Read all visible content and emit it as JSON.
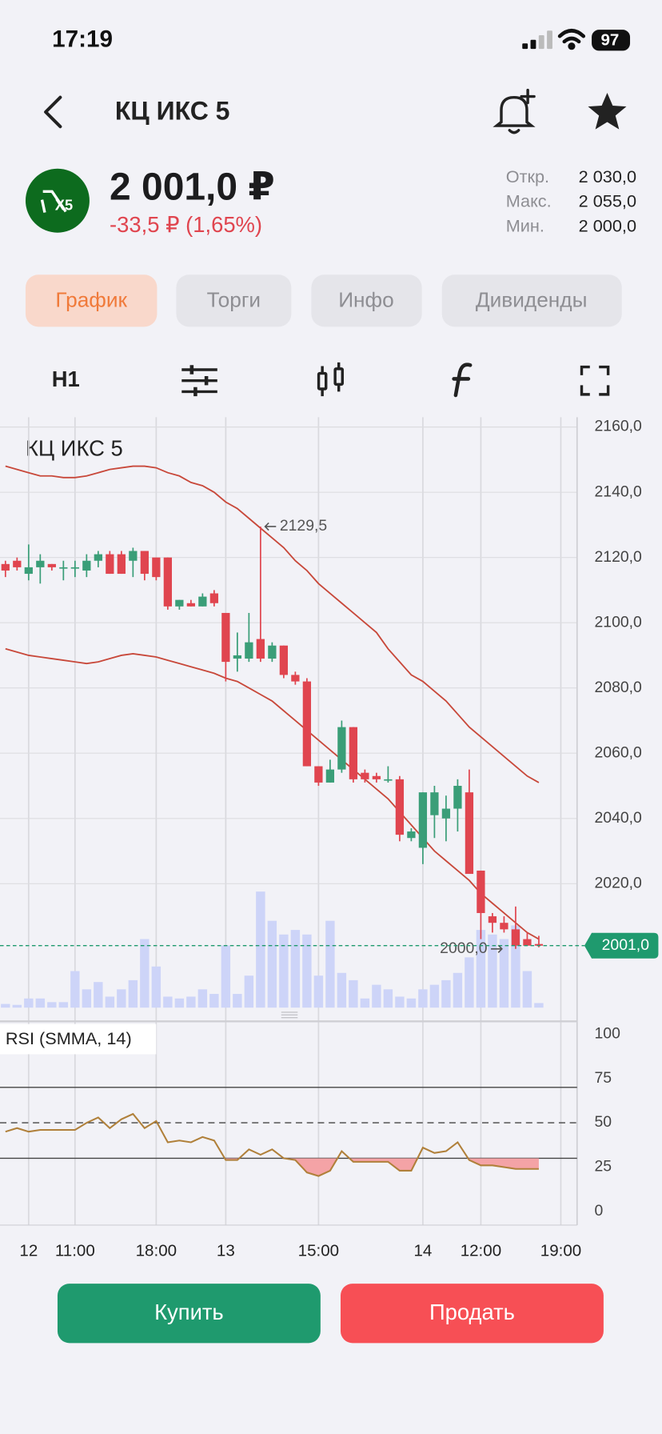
{
  "status_bar": {
    "time": "17:19",
    "battery": "97"
  },
  "header": {
    "title": "КЦ ИКС 5"
  },
  "quote": {
    "logo": "X5",
    "price": "2 001,0 ₽",
    "change": "-33,5 ₽ (1,65%)",
    "stats": [
      {
        "label": "Откр.",
        "value": "2 030,0"
      },
      {
        "label": "Макс.",
        "value": "2 055,0"
      },
      {
        "label": "Мин.",
        "value": "2 000,0"
      }
    ]
  },
  "tabs": [
    "График",
    "Торги",
    "Инфо",
    "Дивиденды"
  ],
  "toolbar": {
    "interval": "H1"
  },
  "chart_data": [
    {
      "type": "candlestick",
      "title": "КЦ ИКС 5",
      "up_color": "#3a9e78",
      "down_color": "#e0454f",
      "grid": true,
      "open": [
        2118,
        2119,
        2115,
        2117,
        2118,
        2117,
        2117,
        2116,
        2119,
        2121,
        2121,
        2119,
        2122,
        2120,
        2120,
        2105,
        2106,
        2105,
        2109,
        2103,
        2089,
        2089,
        2095,
        2089,
        2093,
        2084,
        2082,
        2056,
        2051,
        2055,
        2068,
        2054,
        2053,
        2052,
        2052,
        2034,
        2031,
        2041,
        2040,
        2043,
        2048,
        2024,
        2010,
        2008,
        2006,
        2003,
        2001.5
      ],
      "high": [
        2119,
        2120,
        2124,
        2121,
        2118,
        2119,
        2119,
        2121,
        2122,
        2122,
        2122,
        2123,
        2122,
        2120,
        2120,
        2107,
        2107,
        2109,
        2110,
        2103,
        2097,
        2103,
        2129.5,
        2094,
        2093,
        2085,
        2083,
        2056,
        2058,
        2070,
        2068,
        2055,
        2054,
        2056,
        2053,
        2037,
        2048,
        2050,
        2047,
        2052,
        2055,
        2024,
        2011,
        2010,
        2013,
        2005,
        2004
      ],
      "low": [
        2114,
        2116,
        2113,
        2112,
        2116,
        2113,
        2114,
        2114,
        2117,
        2115,
        2115,
        2114,
        2113,
        2113,
        2104,
        2104,
        2105,
        2105,
        2105,
        2082,
        2085,
        2088,
        2088,
        2088,
        2083,
        2081,
        2056,
        2050,
        2051,
        2054,
        2051,
        2051,
        2051,
        2051,
        2033,
        2033,
        2026,
        2034,
        2033,
        2036,
        2023,
        2003,
        2005,
        2005,
        2000,
        2001,
        2000.5
      ],
      "close": [
        2116,
        2117,
        2117,
        2119,
        2117,
        2117,
        2117,
        2119,
        2121,
        2115,
        2115,
        2122,
        2115,
        2114,
        2105,
        2107,
        2105,
        2108,
        2106,
        2088,
        2090,
        2094,
        2089,
        2093,
        2084,
        2082,
        2056,
        2051,
        2055,
        2068,
        2052,
        2052,
        2052,
        2052,
        2035,
        2036,
        2048,
        2048,
        2043,
        2050,
        2023,
        2011,
        2008,
        2006,
        2001,
        2001,
        2001
      ],
      "overlays": [
        {
          "color": "#c8483a",
          "values": [
            2148,
            2147,
            2146,
            2145,
            2145,
            2144.5,
            2144.5,
            2145,
            2146,
            2147,
            2147.5,
            2148,
            2148,
            2147.5,
            2146,
            2145,
            2143,
            2142,
            2140,
            2137,
            2135,
            2132,
            2129,
            2126,
            2123,
            2119,
            2116,
            2112,
            2109,
            2106,
            2103,
            2100,
            2097,
            2092,
            2088,
            2084,
            2082,
            2079,
            2076,
            2072,
            2068,
            2065,
            2062,
            2059,
            2056,
            2053,
            2051
          ]
        },
        {
          "color": "#c8483a",
          "values": [
            2092,
            2091,
            2090,
            2089.5,
            2089,
            2088.5,
            2088,
            2087.5,
            2088,
            2089,
            2090,
            2090.5,
            2090,
            2089.5,
            2088.5,
            2087.5,
            2086.5,
            2085.5,
            2084.5,
            2083,
            2082,
            2080,
            2078,
            2076,
            2073,
            2070,
            2067,
            2064,
            2061,
            2058,
            2055,
            2052,
            2049,
            2046,
            2042,
            2038,
            2034,
            2030,
            2027,
            2024,
            2021,
            2017,
            2014,
            2011,
            2008,
            2005,
            2003
          ]
        }
      ],
      "volume": {
        "color": "#cdd4f8",
        "values": [
          4,
          3,
          10,
          10,
          6,
          6,
          40,
          20,
          28,
          12,
          20,
          30,
          75,
          45,
          12,
          10,
          12,
          20,
          15,
          68,
          15,
          35,
          127,
          95,
          80,
          85,
          80,
          35,
          95,
          38,
          30,
          10,
          25,
          20,
          12,
          10,
          20,
          25,
          30,
          38,
          55,
          85,
          80,
          75,
          90,
          40,
          5
        ]
      },
      "high_marker": {
        "value": 2129.5,
        "label": "2129,5"
      },
      "low_marker": {
        "value": 2000,
        "label": "2000,0"
      },
      "last_price": {
        "value": 2001,
        "label": "2001,0",
        "color": "#1f9a6e"
      },
      "xlim": [
        -0.47,
        49.3
      ],
      "ylim": [
        1982,
        2163
      ],
      "yticks": [
        {
          "value": 2020,
          "label": "2020,0"
        },
        {
          "value": 2040,
          "label": "2040,0"
        },
        {
          "value": 2060,
          "label": "2060,0"
        },
        {
          "value": 2080,
          "label": "2080,0"
        },
        {
          "value": 2100,
          "label": "2100,0"
        },
        {
          "value": 2120,
          "label": "2120,0"
        },
        {
          "value": 2140,
          "label": "2140,0"
        },
        {
          "value": 2160,
          "label": "2160,0"
        }
      ]
    },
    {
      "type": "line",
      "title": "RSI (SMMA, 14)",
      "color": "#b0803a",
      "fill_color": "#f4a3a6",
      "values": [
        45,
        47,
        45,
        46,
        46,
        46,
        46,
        50,
        53,
        47,
        52,
        55,
        47,
        51,
        39,
        40,
        39,
        42,
        40,
        29,
        29,
        35,
        32,
        35,
        30,
        29,
        22,
        20,
        23,
        34,
        28,
        28,
        28,
        28,
        23,
        23,
        36,
        33,
        34,
        39,
        29,
        26,
        26,
        25,
        24,
        24,
        24
      ],
      "levels": [
        {
          "value": 70,
          "style": "solid"
        },
        {
          "value": 50,
          "style": "dashed"
        },
        {
          "value": 30,
          "style": "solid"
        }
      ],
      "xlim": [
        -0.47,
        49.3
      ],
      "ylim": [
        -7.7,
        106.7
      ],
      "yticks": [
        0,
        25,
        50,
        75,
        100
      ],
      "xticks": [
        {
          "value": 2,
          "label": "12"
        },
        {
          "value": 6,
          "label": "11:00"
        },
        {
          "value": 13,
          "label": "18:00"
        },
        {
          "value": 19,
          "label": "13"
        },
        {
          "value": 27,
          "label": "15:00"
        },
        {
          "value": 36,
          "label": "14"
        },
        {
          "value": 41,
          "label": "12:00"
        },
        {
          "value": 47.9,
          "label": "19:00"
        }
      ]
    }
  ],
  "actions": {
    "buy": "Купить",
    "sell": "Продать"
  }
}
